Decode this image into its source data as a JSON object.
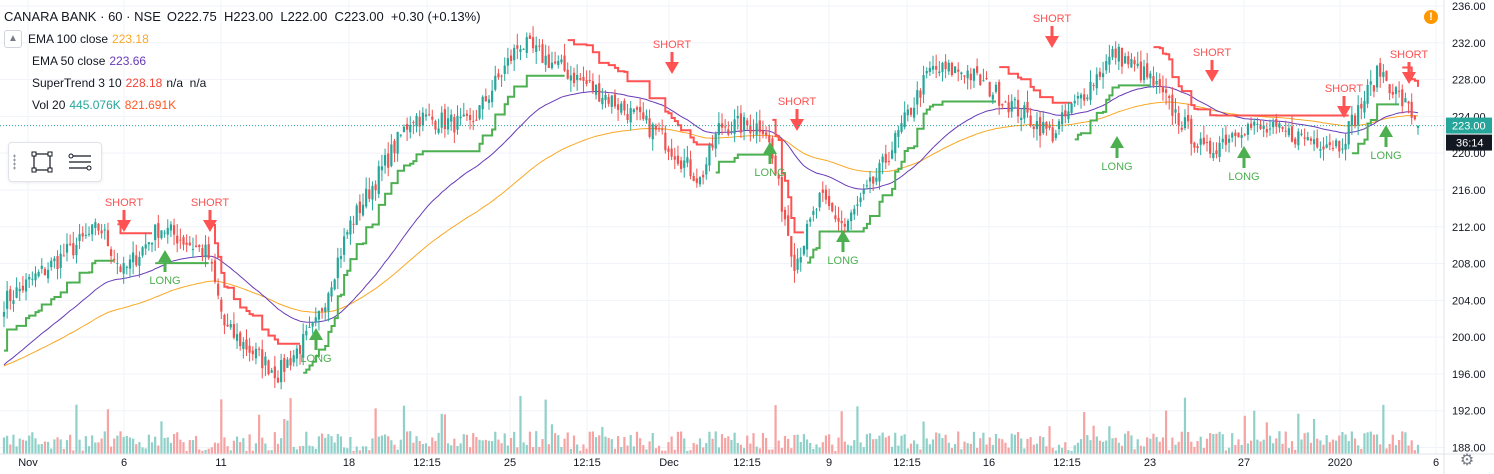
{
  "header": {
    "symbol": "CANARA BANK",
    "sep1": "·",
    "interval": "60",
    "sep2": "·",
    "exchange": "NSE",
    "ohlc": "O222.75  H223.00  L222.00  C223.00  +0.30 (+0.13%)"
  },
  "indicators": [
    {
      "label": "EMA 100 close",
      "value": "223.18",
      "color": "#f9a825"
    },
    {
      "label": "EMA 50 close",
      "value": "223.66",
      "color": "#673ab7"
    },
    {
      "label": "SuperTrend 3 10",
      "value": "228.18",
      "extra": "n/a  n/a",
      "color": "#f44336"
    },
    {
      "label": "Vol 20",
      "value": "445.076K",
      "extra": "821.691K",
      "color": "#26a69a",
      "extra_color": "#ff5722"
    }
  ],
  "colors": {
    "up": "#26a69a",
    "down": "#ef5350",
    "vol_up": "#8fd0c8",
    "vol_down": "#f5a3a3",
    "supertrend_up": "#4caf50",
    "supertrend_down": "#ff5252",
    "ema50": "#673ab7",
    "ema100": "#f9a825",
    "last_price": "#26a69a",
    "countdown": "#131722"
  },
  "icons": {
    "collapse": "chevron-up-icon",
    "rectangle": "rectangle-tool-icon",
    "lines": "horizontal-lines-icon",
    "warning": "warning-icon",
    "settings": "gear-icon"
  },
  "price_axis": {
    "ticks": [
      "236.00",
      "232.00",
      "228.00",
      "224.00",
      "220.00",
      "216.00",
      "212.00",
      "208.00",
      "204.00",
      "200.00",
      "196.00",
      "192.00",
      "188.00"
    ],
    "last_price_label": "223.00",
    "countdown_label": "36:14"
  },
  "time_axis": {
    "ticks": [
      "Nov",
      "6",
      "11",
      "18",
      "12:15",
      "25",
      "12:15",
      "Dec",
      "12:15",
      "9",
      "12:15",
      "16",
      "12:15",
      "23",
      "27",
      "2020",
      "6"
    ]
  },
  "markers": [
    {
      "label": "SHORT"
    },
    {
      "label": "LONG"
    },
    {
      "label": "SHORT"
    },
    {
      "label": "LONG"
    },
    {
      "label": "SHORT"
    },
    {
      "label": "LONG"
    },
    {
      "label": "SHORT"
    },
    {
      "label": "LONG"
    },
    {
      "label": "SHORT"
    },
    {
      "label": "LONG"
    },
    {
      "label": "SHORT"
    },
    {
      "label": "LONG"
    },
    {
      "label": "SHORT"
    },
    {
      "label": "LONG"
    },
    {
      "label": "SHORT"
    }
  ],
  "chart_data": {
    "type": "candlestick",
    "symbol": "CANARA BANK",
    "interval": "60",
    "y_range": [
      188,
      236
    ],
    "x_tick_labels": [
      "Nov",
      "6",
      "11",
      "18",
      "12:15",
      "25",
      "12:15",
      "Dec",
      "12:15",
      "9",
      "12:15",
      "16",
      "12:15",
      "23",
      "27",
      "2020",
      "6"
    ],
    "close_path": [
      {
        "t": "Nov start",
        "close": 203.5
      },
      {
        "t": "early Nov 6",
        "close": 212
      },
      {
        "t": "Nov 6 SHORT",
        "close": 207
      },
      {
        "t": "Nov 8 LONG",
        "close": 212
      },
      {
        "t": "Nov 10 SHORT",
        "close": 209
      },
      {
        "t": "Nov 11",
        "close": 201
      },
      {
        "t": "Nov 15 low",
        "close": 196
      },
      {
        "t": "Nov 15 LONG",
        "close": 201
      },
      {
        "t": "Nov 18",
        "close": 212
      },
      {
        "t": "Nov 19 12:15",
        "close": 224
      },
      {
        "t": "Nov 25",
        "close": 223
      },
      {
        "t": "Nov 27",
        "close": 232
      },
      {
        "t": "Nov 29 SHORT",
        "close": 226
      },
      {
        "t": "Dec 2",
        "close": 222
      },
      {
        "t": "Dec 3",
        "close": 217
      },
      {
        "t": "Dec 5 LONG",
        "close": 223
      },
      {
        "t": "Dec 6 SHORT",
        "close": 223
      },
      {
        "t": "Dec 9 low",
        "close": 208
      },
      {
        "t": "Dec 10 LONG",
        "close": 215
      },
      {
        "t": "Dec 12",
        "close": 212
      },
      {
        "t": "Dec 13",
        "close": 218
      },
      {
        "t": "Dec 16",
        "close": 229
      },
      {
        "t": "Dec 17 SHORT",
        "close": 229
      },
      {
        "t": "Dec 19 LONG",
        "close": 222
      },
      {
        "t": "Dec 23",
        "close": 231
      },
      {
        "t": "Dec 26 SHORT",
        "close": 228
      },
      {
        "t": "Dec 27 LONG",
        "close": 220
      },
      {
        "t": "Dec 31 SHORT",
        "close": 223
      },
      {
        "t": "Jan 2 LONG",
        "close": 221
      },
      {
        "t": "Jan 3 SHORT",
        "close": 229
      },
      {
        "t": "last",
        "close": 223
      }
    ],
    "last": {
      "open": 222.75,
      "high": 223.0,
      "low": 222.0,
      "close": 223.0,
      "change": 0.3,
      "change_pct": 0.13
    },
    "series": [
      {
        "name": "EMA 100 close",
        "last": 223.18
      },
      {
        "name": "EMA 50 close",
        "last": 223.66
      },
      {
        "name": "SuperTrend 3 10",
        "last": 228.18
      },
      {
        "name": "Vol 20",
        "last": 445076,
        "ma": 821691
      }
    ],
    "grid": true,
    "legend_position": "top-left"
  }
}
